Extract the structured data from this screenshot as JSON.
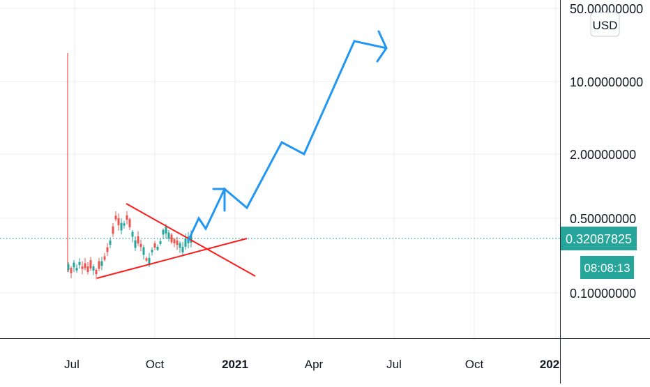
{
  "chart_data": {
    "type": "candlestick",
    "y_scale": "log",
    "currency_badge": "USD",
    "price_axis": {
      "ticks": [
        "50.00000000",
        "10.00000000",
        "2.00000000",
        "0.50000000",
        "0.10000000"
      ]
    },
    "time_axis": {
      "ticks": [
        "Jul",
        "Oct",
        "2021",
        "Apr",
        "Jul",
        "Oct",
        "202"
      ],
      "bold": [
        false,
        false,
        true,
        false,
        false,
        false,
        true
      ]
    },
    "last_price": {
      "value": "0.32087825",
      "countdown": "08:08:13"
    },
    "colors": {
      "up": "#26a69a",
      "down": "#ef5350",
      "projection": "#2196f3",
      "trendlines": "#ff1a1a",
      "price_badge": "#26a69a",
      "grid": "#e9eef3"
    }
  }
}
